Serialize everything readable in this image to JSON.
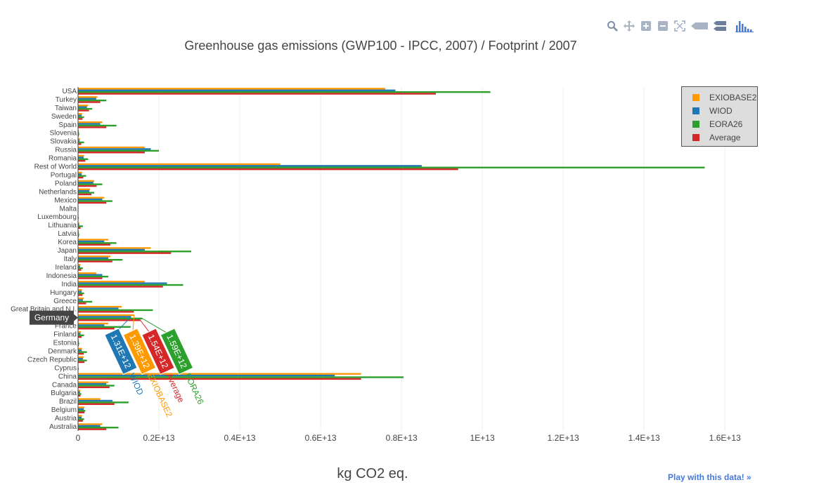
{
  "modebar": {
    "icons": [
      "zoom-icon",
      "pan-icon",
      "zoom-in-icon",
      "zoom-out-icon",
      "autoscale-icon",
      "hover-closest-icon",
      "hover-compare-icon",
      "plotly-logo-icon"
    ]
  },
  "colors": {
    "EXIOBASE2": "#ff9900",
    "WIOD": "#1f77b4",
    "EORA26": "#2ca02c",
    "Average": "#d62728",
    "grid": "#eeeeee",
    "legend_bg": "#dddddd",
    "link": "#447adb"
  },
  "play_link": "Play with this data! »",
  "hover": {
    "category": "Germany",
    "labels": [
      {
        "series": "WIOD",
        "value": "1.31E+12"
      },
      {
        "series": "EXIOBASE2",
        "value": "1.39E+12"
      },
      {
        "series": "Average",
        "value": "1.54E+12"
      },
      {
        "series": "EORA26",
        "value": "1.59E+12"
      }
    ]
  },
  "chart_data": {
    "type": "bar",
    "orientation": "horizontal",
    "title": "Greenhouse gas emissions (GWP100 - IPCC, 2007) / Footprint / 2007",
    "xlabel": "kg CO2 eq.",
    "ylabel": "",
    "xlim": [
      0,
      16500000000000.0
    ],
    "x_ticks": [
      0,
      2000000000000.0,
      4000000000000.0,
      6000000000000.0,
      8000000000000.0,
      10000000000000.0,
      12000000000000.0,
      14000000000000.0,
      16000000000000.0
    ],
    "x_tick_labels": [
      "0",
      "0.2E+13",
      "0.4E+13",
      "0.6E+13",
      "0.8E+13",
      "1E+13",
      "1.2E+13",
      "1.4E+13",
      "1.6E+13"
    ],
    "grid": true,
    "legend_position": "top-right",
    "categories": [
      "Australia",
      "Austria",
      "Belgium",
      "Brazil",
      "Bulgaria",
      "Canada",
      "China",
      "Cyprus",
      "Czech Republic",
      "Denmark",
      "Estonia",
      "Finland",
      "France",
      "Germany",
      "Great Britain and N.I.",
      "Greece",
      "Hungary",
      "India",
      "Indonesia",
      "Ireland",
      "Italy",
      "Japan",
      "Korea",
      "Latvia",
      "Lithuania",
      "Luxembourg",
      "Malta",
      "Mexico",
      "Netherlands",
      "Poland",
      "Portugal",
      "Rest of World",
      "Romania",
      "Russia",
      "Slovakia",
      "Slovenia",
      "Spain",
      "Sweden",
      "Taiwan",
      "Turkey",
      "USA"
    ],
    "category_labels": [
      "Australia",
      "Austria",
      "Belgium",
      "Brazil",
      "Bulgaria",
      "Canada",
      "China",
      "Cyprus",
      "Czech Republic",
      "Denmark",
      "Estonia",
      "Finland",
      "France",
      "",
      "Great Britain and N.I.",
      "Greece",
      "Hungary",
      "India",
      "Indonesia",
      "Ireland",
      "Italy",
      "Japan",
      "Korea",
      "Latvia",
      "Lithuania",
      "Luxembourg",
      "Malta",
      "Mexico",
      "Netherlands",
      "Poland",
      "Portugal",
      "Rest of World",
      "Romania",
      "Russia",
      "Slovakia",
      "Slovenia",
      "Spain",
      "Sweden",
      "Taiwan",
      "Turkey",
      "USA"
    ],
    "series": [
      {
        "name": "EXIOBASE2",
        "values": [
          600000000000.0,
          100000000000.0,
          160000000000.0,
          550000000000.0,
          60000000000.0,
          750000000000.0,
          7000000000000.0,
          10000000000.0,
          140000000000.0,
          100000000000.0,
          20000000000.0,
          70000000000.0,
          750000000000.0,
          1390000000000.0,
          1080000000000.0,
          140000000000.0,
          100000000000.0,
          1650000000000.0,
          450000000000.0,
          60000000000.0,
          800000000000.0,
          1800000000000.0,
          750000000000.0,
          20000000000.0,
          30000000000.0,
          10000000000.0,
          5000000000.0,
          650000000000.0,
          300000000000.0,
          400000000000.0,
          100000000000.0,
          5000000000000.0,
          150000000000.0,
          1650000000000.0,
          50000000000.0,
          20000000000.0,
          600000000000.0,
          100000000000.0,
          250000000000.0,
          480000000000.0,
          7600000000000.0
        ]
      },
      {
        "name": "WIOD",
        "values": [
          550000000000.0,
          90000000000.0,
          140000000000.0,
          850000000000.0,
          50000000000.0,
          700000000000.0,
          6350000000000.0,
          10000000000.0,
          120000000000.0,
          90000000000.0,
          20000000000.0,
          60000000000.0,
          650000000000.0,
          1310000000000.0,
          1000000000000.0,
          120000000000.0,
          90000000000.0,
          2200000000000.0,
          600000000000.0,
          50000000000.0,
          750000000000.0,
          1650000000000.0,
          650000000000.0,
          20000000000.0,
          30000000000.0,
          10000000000.0,
          5000000000.0,
          600000000000.0,
          280000000000.0,
          380000000000.0,
          90000000000.0,
          8500000000000.0,
          140000000000.0,
          1800000000000.0,
          40000000000.0,
          20000000000.0,
          550000000000.0,
          90000000000.0,
          220000000000.0,
          450000000000.0,
          7850000000000.0
        ]
      },
      {
        "name": "EORA26",
        "values": [
          1000000000000.0,
          150000000000.0,
          180000000000.0,
          1250000000000.0,
          80000000000.0,
          900000000000.0,
          8050000000000.0,
          20000000000.0,
          220000000000.0,
          220000000000.0,
          30000000000.0,
          150000000000.0,
          1300000000000.0,
          1590000000000.0,
          1850000000000.0,
          350000000000.0,
          150000000000.0,
          2600000000000.0,
          750000000000.0,
          120000000000.0,
          1100000000000.0,
          2800000000000.0,
          950000000000.0,
          30000000000.0,
          120000000000.0,
          20000000000.0,
          10000000000.0,
          850000000000.0,
          400000000000.0,
          600000000000.0,
          200000000000.0,
          15500000000000.0,
          250000000000.0,
          2000000000000.0,
          150000000000.0,
          30000000000.0,
          950000000000.0,
          150000000000.0,
          350000000000.0,
          700000000000.0,
          10200000000000.0
        ]
      },
      {
        "name": "Average",
        "values": [
          700000000000.0,
          120000000000.0,
          160000000000.0,
          900000000000.0,
          60000000000.0,
          780000000000.0,
          7000000000000.0,
          10000000000.0,
          160000000000.0,
          140000000000.0,
          20000000000.0,
          90000000000.0,
          900000000000.0,
          1540000000000.0,
          1380000000000.0,
          200000000000.0,
          110000000000.0,
          2100000000000.0,
          600000000000.0,
          80000000000.0,
          850000000000.0,
          2300000000000.0,
          800000000000.0,
          20000000000.0,
          60000000000.0,
          10000000000.0,
          5000000000.0,
          700000000000.0,
          330000000000.0,
          460000000000.0,
          130000000000.0,
          9400000000000.0,
          180000000000.0,
          1650000000000.0,
          80000000000.0,
          20000000000.0,
          700000000000.0,
          110000000000.0,
          270000000000.0,
          550000000000.0,
          8850000000000.0
        ]
      }
    ]
  }
}
